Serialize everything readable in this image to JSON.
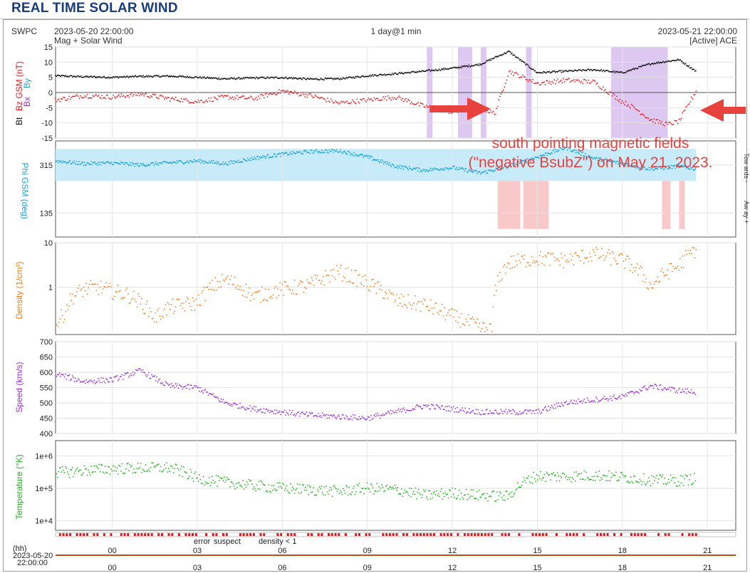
{
  "page_title": "REAL TIME SOLAR WIND",
  "header": {
    "org": "SWPC",
    "start_time": "2023-05-20 22:00:00",
    "product": "Mag + Solar Wind",
    "span": "1 day@1 min",
    "end_time": "2023-05-21 22:00:00",
    "source": "[Active] ACE"
  },
  "annotation": {
    "line1": "south pointing magnetic fields",
    "line2": "(\"negative BsubZ\") on May 21, 2023."
  },
  "colors": {
    "bz": "#e31a1c",
    "bt": "#111111",
    "bx": "#9b30d9",
    "by": "#1aa3d9",
    "phi": "#1aa3d9",
    "phi_toward_band": "#c8ebfa",
    "phi_away_band": "#f9c8c8",
    "density": "#f07d1a",
    "speed": "#9b30d9",
    "temperature": "#22b41e",
    "negative_bz_band": "#dcc8f0",
    "arrow": "#e8423f"
  },
  "quality_legend": {
    "error": "error",
    "suspect": "suspect",
    "density_low": "density < 1",
    "error_color": "#e31a1c",
    "suspect_color": "#e8b400",
    "density_color": "#f07d1a"
  },
  "x_axis": {
    "unit_label": "(hh)",
    "start_date": "2023-05-20",
    "start_clock": "22:00:00",
    "tick_labels": [
      "00",
      "03",
      "06",
      "09",
      "12",
      "15",
      "18",
      "21"
    ]
  },
  "chart_data": [
    {
      "type": "scatter",
      "panel": "magnetic_field",
      "ylabel_parts": [
        "Bt",
        "Bz GSM (nT)",
        "Bx",
        "By"
      ],
      "ylim": [
        -15,
        15
      ],
      "yticks": [
        "15",
        "10",
        "5",
        "0",
        "-5",
        "-10",
        "-15"
      ],
      "x_unit": "hours since 2023-05-20 22:00 UTC",
      "series": [
        {
          "name": "Bt",
          "x": [
            0,
            1,
            2,
            3,
            4,
            5,
            6,
            7,
            8,
            9,
            10,
            11,
            12,
            13,
            14,
            15,
            15.5,
            16,
            17,
            18,
            19,
            20,
            21,
            22,
            22.6
          ],
          "y": [
            5.5,
            5.2,
            5.0,
            5.3,
            5.4,
            5.0,
            4.5,
            4.8,
            4.9,
            4.4,
            4.5,
            5.5,
            6.2,
            7.0,
            8.0,
            9.3,
            11.5,
            13.5,
            6.5,
            7.0,
            7.5,
            6.5,
            9.5,
            10.8,
            7.0
          ]
        },
        {
          "name": "Bz",
          "x": [
            0,
            1,
            2,
            3,
            4,
            5,
            6,
            7,
            8,
            9,
            10,
            11,
            12,
            13,
            14,
            15,
            15.5,
            16,
            17,
            18,
            19,
            20,
            20.5,
            21,
            21.6,
            22,
            22.6
          ],
          "y": [
            -2.5,
            -1.0,
            -1.5,
            -0.5,
            -2.0,
            -3.0,
            -1.5,
            -2.0,
            0.5,
            -1.0,
            -3.5,
            -2.5,
            -1.5,
            -4.5,
            -6.5,
            -5.0,
            -7.0,
            7.0,
            3.0,
            4.0,
            3.5,
            -3.0,
            -5.5,
            -9.0,
            -10.5,
            -9.5,
            0.5
          ]
        }
      ]
    },
    {
      "type": "scatter",
      "panel": "phi",
      "ylabel": "Phi GSM (deg)",
      "ylim": [
        45,
        405
      ],
      "yticks": [
        "315",
        "135"
      ],
      "side_labels": [
        "Tow ards -",
        "Aw ay +"
      ],
      "x_unit": "hours since 2023-05-20 22:00 UTC",
      "series": [
        {
          "name": "Phi",
          "x": [
            0,
            1,
            2,
            3,
            4,
            5,
            6,
            7,
            8,
            9,
            10,
            11,
            12,
            13,
            14,
            15,
            16,
            17,
            18,
            19,
            20,
            21,
            22,
            22.6
          ],
          "y": [
            330,
            320,
            322,
            315,
            323,
            330,
            320,
            340,
            355,
            365,
            368,
            345,
            310,
            295,
            305,
            285,
            310,
            345,
            380,
            340,
            320,
            300,
            310,
            300
          ]
        }
      ]
    },
    {
      "type": "scatter",
      "panel": "density",
      "ylabel": "Density (1/cm³)",
      "yscale": "log",
      "ylim": [
        0.0875,
        10
      ],
      "yticks": [
        "10",
        "1"
      ],
      "x_unit": "hours since 2023-05-20 22:00 UTC",
      "series": [
        {
          "name": "Density",
          "x": [
            0,
            0.3,
            0.6,
            1,
            1.5,
            2,
            2.5,
            3,
            3.5,
            4,
            5,
            6,
            7,
            8,
            9,
            10,
            11,
            12,
            13,
            14,
            15,
            15.4,
            16,
            17,
            18,
            19,
            20,
            21,
            22,
            22.6
          ],
          "y": [
            0.13,
            0.25,
            0.6,
            0.9,
            1.0,
            0.8,
            0.7,
            0.45,
            0.2,
            0.35,
            0.45,
            1.5,
            0.6,
            0.9,
            1.1,
            2.2,
            1.2,
            0.5,
            0.4,
            0.22,
            0.12,
            0.11,
            3.5,
            4.5,
            4.0,
            5.5,
            4.0,
            1.0,
            3.0,
            7.0
          ]
        }
      ]
    },
    {
      "type": "scatter",
      "panel": "speed",
      "ylabel": "Speed (km/s)",
      "ylim": [
        400,
        700
      ],
      "yticks": [
        "700",
        "650",
        "600",
        "550",
        "500",
        "450",
        "400"
      ],
      "x_unit": "hours since 2023-05-20 22:00 UTC",
      "series": [
        {
          "name": "Speed",
          "x": [
            0,
            1,
            2,
            3,
            4,
            5,
            6,
            7,
            8,
            9,
            10,
            11,
            12,
            13,
            14,
            15,
            16,
            17,
            18,
            19,
            20,
            21,
            22,
            22.6
          ],
          "y": [
            595,
            570,
            575,
            605,
            555,
            550,
            500,
            480,
            470,
            460,
            455,
            450,
            470,
            490,
            480,
            470,
            470,
            470,
            500,
            510,
            520,
            555,
            540,
            535
          ]
        }
      ]
    },
    {
      "type": "scatter",
      "panel": "temperature",
      "ylabel": "Temperature (°K)",
      "yscale": "log",
      "ylim": [
        5000,
        3000000
      ],
      "yticks": [
        "1e+6",
        "1e+5",
        "1e+4"
      ],
      "x_unit": "hours since 2023-05-20 22:00 UTC",
      "series": [
        {
          "name": "Temperature",
          "x": [
            0,
            1,
            2,
            3,
            4,
            5,
            6,
            7,
            8,
            9,
            10,
            11,
            12,
            13,
            14,
            15,
            16,
            17,
            18,
            19,
            20,
            21,
            22,
            22.6
          ],
          "y": [
            300000,
            350000,
            400000,
            420000,
            430000,
            200000,
            150000,
            120000,
            100000,
            90000,
            80000,
            100000,
            90000,
            60000,
            70000,
            60000,
            55000,
            240000,
            230000,
            250000,
            220000,
            180000,
            170000,
            200000
          ]
        }
      ]
    }
  ]
}
